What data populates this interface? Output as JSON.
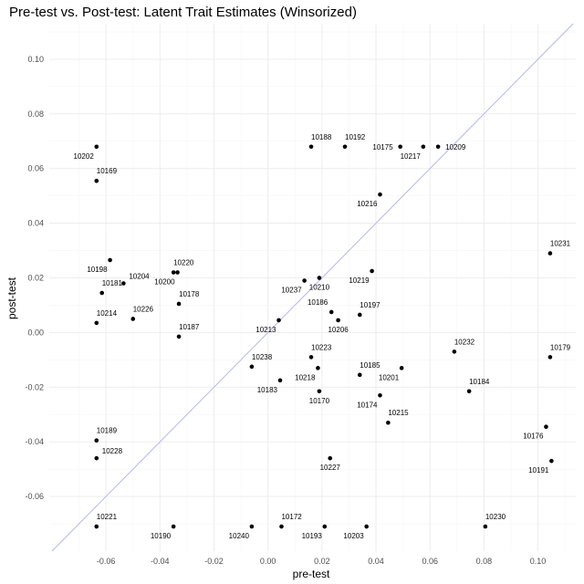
{
  "chart_data": {
    "type": "scatter",
    "title": "Pre-test vs. Post-test: Latent Trait Estimates (Winsorized)",
    "xlabel": "pre-test",
    "ylabel": "post-test",
    "xlim": [
      -0.081,
      0.114
    ],
    "ylim": [
      -0.08,
      0.113
    ],
    "x_ticks": [
      -0.06,
      -0.04,
      -0.02,
      0.0,
      0.02,
      0.04,
      0.06,
      0.08,
      0.1
    ],
    "x_tick_labels": [
      "-0.06",
      "-0.04",
      "-0.02",
      "0.00",
      "0.02",
      "0.04",
      "0.06",
      "0.08",
      "0.10"
    ],
    "y_ticks": [
      -0.06,
      -0.04,
      -0.02,
      0.0,
      0.02,
      0.04,
      0.06,
      0.08,
      0.1
    ],
    "y_tick_labels": [
      "-0.06",
      "-0.04",
      "-0.02",
      "0.00",
      "0.02",
      "0.04",
      "0.06",
      "0.08",
      "0.10"
    ],
    "grid": true,
    "reference_line": "y = x",
    "colors": {
      "points": "#000000",
      "reference_line": "#b7b7f0",
      "grid": "#ebebeb"
    },
    "points": [
      {
        "label": "10202",
        "x": -0.0635,
        "y": 0.068,
        "pos": "below-left"
      },
      {
        "label": "10169",
        "x": -0.0635,
        "y": 0.0555,
        "pos": "above"
      },
      {
        "label": "10188",
        "x": 0.016,
        "y": 0.068,
        "pos": "above"
      },
      {
        "label": "10192",
        "x": 0.0285,
        "y": 0.068,
        "pos": "above"
      },
      {
        "label": "10175",
        "x": 0.049,
        "y": 0.068,
        "pos": "left"
      },
      {
        "label": "10217",
        "x": 0.0575,
        "y": 0.068,
        "pos": "below-left"
      },
      {
        "label": "10209",
        "x": 0.063,
        "y": 0.068,
        "pos": "right"
      },
      {
        "label": "10216",
        "x": 0.0415,
        "y": 0.0505,
        "pos": "below-left"
      },
      {
        "label": "10231",
        "x": 0.1045,
        "y": 0.029,
        "pos": "above"
      },
      {
        "label": "10198",
        "x": -0.0585,
        "y": 0.0265,
        "pos": "below-left"
      },
      {
        "label": "10204",
        "x": -0.0535,
        "y": 0.018,
        "pos": "above-right"
      },
      {
        "label": "10181",
        "x": -0.0615,
        "y": 0.0145,
        "pos": "above"
      },
      {
        "label": "10220",
        "x": -0.035,
        "y": 0.022,
        "pos": "above"
      },
      {
        "label": "10200",
        "x": -0.0335,
        "y": 0.022,
        "pos": "below-left"
      },
      {
        "label": "10178",
        "x": -0.033,
        "y": 0.0105,
        "pos": "above"
      },
      {
        "label": "10226",
        "x": -0.05,
        "y": 0.005,
        "pos": "above"
      },
      {
        "label": "10214",
        "x": -0.0635,
        "y": 0.0035,
        "pos": "above"
      },
      {
        "label": "10187",
        "x": -0.033,
        "y": -0.0015,
        "pos": "above"
      },
      {
        "label": "10237",
        "x": 0.0135,
        "y": 0.019,
        "pos": "below-left"
      },
      {
        "label": "10210",
        "x": 0.019,
        "y": 0.02,
        "pos": "below"
      },
      {
        "label": "10219",
        "x": 0.0385,
        "y": 0.0225,
        "pos": "below-left"
      },
      {
        "label": "10186",
        "x": 0.0235,
        "y": 0.0075,
        "pos": "above-left"
      },
      {
        "label": "10197",
        "x": 0.034,
        "y": 0.0065,
        "pos": "above"
      },
      {
        "label": "10206",
        "x": 0.026,
        "y": 0.0045,
        "pos": "below"
      },
      {
        "label": "10213",
        "x": 0.004,
        "y": 0.0045,
        "pos": "below-left"
      },
      {
        "label": "10232",
        "x": 0.069,
        "y": -0.007,
        "pos": "above"
      },
      {
        "label": "10179",
        "x": 0.1045,
        "y": -0.009,
        "pos": "above"
      },
      {
        "label": "10223",
        "x": 0.016,
        "y": -0.009,
        "pos": "above"
      },
      {
        "label": "10185",
        "x": 0.034,
        "y": -0.0155,
        "pos": "above"
      },
      {
        "label": "10201",
        "x": 0.0495,
        "y": -0.013,
        "pos": "below-left"
      },
      {
        "label": "10238",
        "x": -0.006,
        "y": -0.0125,
        "pos": "above"
      },
      {
        "label": "10218",
        "x": 0.0185,
        "y": -0.013,
        "pos": "below-left"
      },
      {
        "label": "10183",
        "x": 0.0045,
        "y": -0.0175,
        "pos": "below-left"
      },
      {
        "label": "10170",
        "x": 0.019,
        "y": -0.0215,
        "pos": "below"
      },
      {
        "label": "10174",
        "x": 0.0415,
        "y": -0.023,
        "pos": "below-left"
      },
      {
        "label": "10184",
        "x": 0.0745,
        "y": -0.0215,
        "pos": "above"
      },
      {
        "label": "10215",
        "x": 0.0445,
        "y": -0.033,
        "pos": "above"
      },
      {
        "label": "10176",
        "x": 0.103,
        "y": -0.0345,
        "pos": "below-left"
      },
      {
        "label": "10191",
        "x": 0.105,
        "y": -0.047,
        "pos": "below-left"
      },
      {
        "label": "10189",
        "x": -0.0635,
        "y": -0.0395,
        "pos": "above"
      },
      {
        "label": "10228",
        "x": -0.0635,
        "y": -0.046,
        "pos": "above-right"
      },
      {
        "label": "10227",
        "x": 0.023,
        "y": -0.046,
        "pos": "below"
      },
      {
        "label": "10221",
        "x": -0.0635,
        "y": -0.071,
        "pos": "above"
      },
      {
        "label": "10190",
        "x": -0.035,
        "y": -0.071,
        "pos": "below-left"
      },
      {
        "label": "10240",
        "x": -0.006,
        "y": -0.071,
        "pos": "below-left"
      },
      {
        "label": "10172",
        "x": 0.005,
        "y": -0.071,
        "pos": "above"
      },
      {
        "label": "10193",
        "x": 0.021,
        "y": -0.071,
        "pos": "below-left"
      },
      {
        "label": "10203",
        "x": 0.0365,
        "y": -0.071,
        "pos": "below-left"
      },
      {
        "label": "10230",
        "x": 0.0805,
        "y": -0.071,
        "pos": "above"
      }
    ]
  }
}
